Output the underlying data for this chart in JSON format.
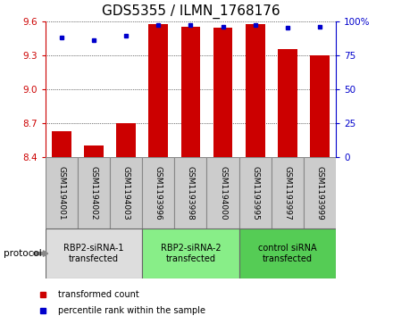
{
  "title": "GDS5355 / ILMN_1768176",
  "samples": [
    "GSM1194001",
    "GSM1194002",
    "GSM1194003",
    "GSM1193996",
    "GSM1193998",
    "GSM1194000",
    "GSM1193995",
    "GSM1193997",
    "GSM1193999"
  ],
  "bar_values": [
    8.63,
    8.5,
    8.7,
    9.57,
    9.55,
    9.54,
    9.57,
    9.35,
    9.3
  ],
  "dot_values": [
    88,
    86,
    89,
    97,
    97,
    96,
    97,
    95,
    96
  ],
  "ylim": [
    8.4,
    9.6
  ],
  "yticks_left": [
    8.4,
    8.7,
    9.0,
    9.3,
    9.6
  ],
  "yticks_right": [
    0,
    25,
    50,
    75,
    100
  ],
  "bar_color": "#cc0000",
  "dot_color": "#0000cc",
  "groups": [
    {
      "label": "RBP2-siRNA-1\ntransfected",
      "start": 0,
      "end": 3,
      "color": "#dddddd"
    },
    {
      "label": "RBP2-siRNA-2\ntransfected",
      "start": 3,
      "end": 6,
      "color": "#88ee88"
    },
    {
      "label": "control siRNA\ntransfected",
      "start": 6,
      "end": 9,
      "color": "#55cc55"
    }
  ],
  "protocol_label": "protocol",
  "legend_bar_label": "transformed count",
  "legend_dot_label": "percentile rank within the sample",
  "bar_color_legend": "#cc0000",
  "dot_color_legend": "#0000cc",
  "title_fontsize": 11,
  "tick_fontsize": 7.5,
  "sample_box_color": "#cccccc",
  "sample_box_edgecolor": "#888888"
}
